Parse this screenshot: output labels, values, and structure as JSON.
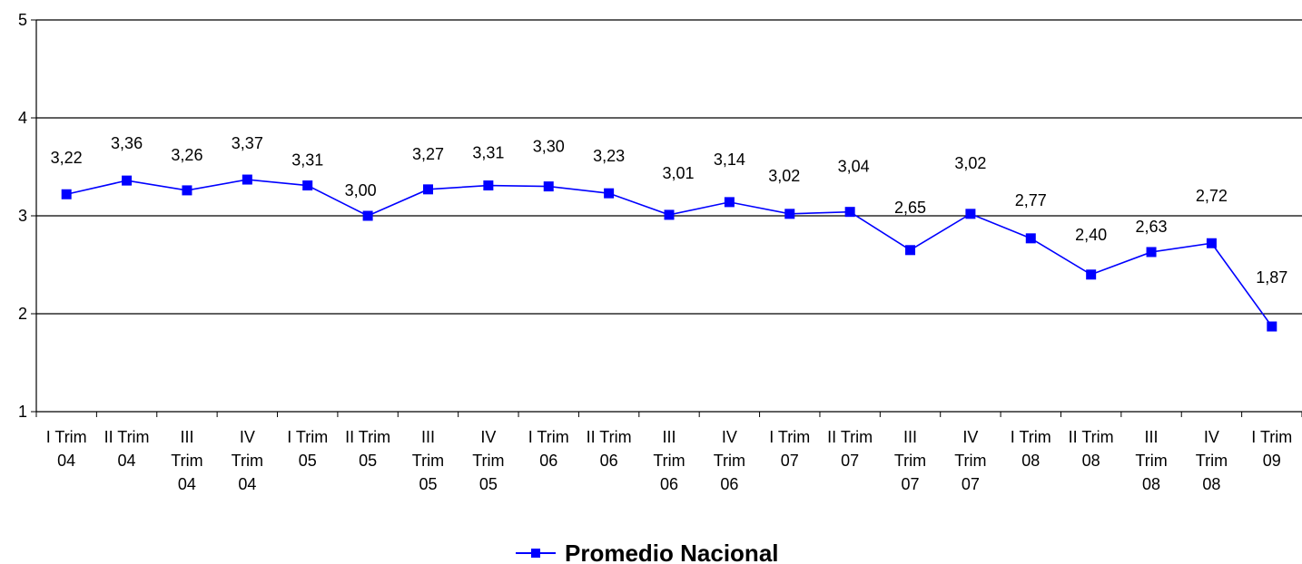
{
  "chart_data": {
    "type": "line",
    "categories": [
      [
        "I Trim",
        "04"
      ],
      [
        "II Trim",
        "04"
      ],
      [
        "III",
        "Trim",
        "04"
      ],
      [
        "IV",
        "Trim",
        "04"
      ],
      [
        "I Trim",
        "05"
      ],
      [
        "II Trim",
        "05"
      ],
      [
        "III",
        "Trim",
        "05"
      ],
      [
        "IV",
        "Trim",
        "05"
      ],
      [
        "I Trim",
        "06"
      ],
      [
        "II Trim",
        "06"
      ],
      [
        "III",
        "Trim",
        "06"
      ],
      [
        "IV",
        "Trim",
        "06"
      ],
      [
        "I Trim",
        "07"
      ],
      [
        "II Trim",
        "07"
      ],
      [
        "III",
        "Trim",
        "07"
      ],
      [
        "IV",
        "Trim",
        "07"
      ],
      [
        "I Trim",
        "08"
      ],
      [
        "II Trim",
        "08"
      ],
      [
        "III",
        "Trim",
        "08"
      ],
      [
        "IV",
        "Trim",
        "08"
      ],
      [
        "I Trim",
        "09"
      ]
    ],
    "series": [
      {
        "name": "Promedio Nacional",
        "values": [
          3.22,
          3.36,
          3.26,
          3.37,
          3.31,
          3.0,
          3.27,
          3.31,
          3.3,
          3.23,
          3.01,
          3.14,
          3.02,
          3.04,
          2.65,
          3.02,
          2.77,
          2.4,
          2.63,
          2.72,
          1.87
        ],
        "labels": [
          "3,22",
          "3,36",
          "3,26",
          "3,37",
          "3,31",
          "3,00",
          "3,27",
          "3,31",
          "3,30",
          "3,23",
          "3,01",
          "3,14",
          "3,02",
          "3,04",
          "2,65",
          "3,02",
          "2,77",
          "2,40",
          "2,63",
          "2,72",
          "1,87"
        ]
      }
    ],
    "ylim": [
      1,
      5
    ],
    "yticks": [
      "1",
      "2",
      "3",
      "4",
      "5"
    ],
    "grid": true,
    "legend_position": "bottom",
    "color": "#0000ff"
  }
}
